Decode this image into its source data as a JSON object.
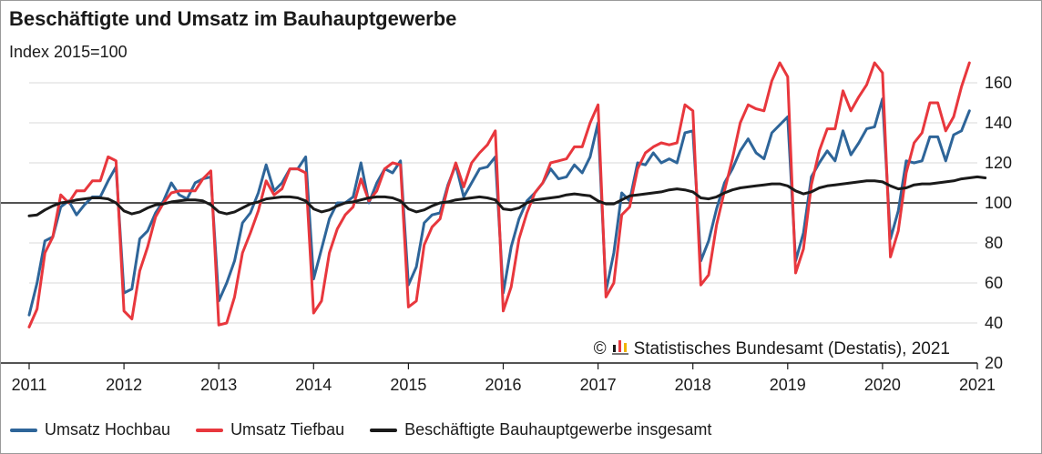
{
  "title": "Beschäftigte und Umsatz im Bauhauptgewerbe",
  "subtitle": "Index 2015=100",
  "credit": "Statistisches Bundesamt (Destatis), 2021",
  "credit_symbol": "©",
  "chart_data": {
    "type": "line",
    "xlim": [
      2011,
      2021
    ],
    "ylim": [
      20,
      170
    ],
    "x_ticks": [
      "2011",
      "2012",
      "2013",
      "2014",
      "2015",
      "2016",
      "2017",
      "2018",
      "2019",
      "2020",
      "2021"
    ],
    "y_ticks": [
      "20",
      "40",
      "60",
      "80",
      "100",
      "120",
      "140",
      "160"
    ],
    "reference_line": 100,
    "grid": "horizontal",
    "legend_position": "bottom",
    "series": [
      {
        "name": "Umsatz Hochbau",
        "color": "#2e6599",
        "values": [
          44,
          60,
          81,
          83,
          98,
          101,
          94,
          99,
          103,
          103,
          111,
          118,
          55,
          57,
          82,
          86,
          95,
          101,
          110,
          104,
          102,
          110,
          112,
          113,
          51,
          60,
          71,
          90,
          95,
          105,
          119,
          106,
          110,
          117,
          117,
          123,
          62,
          77,
          92,
          100,
          100,
          103,
          120,
          100,
          110,
          117,
          115,
          121,
          59,
          68,
          90,
          94,
          95,
          109,
          119,
          103,
          110,
          117,
          118,
          123,
          55,
          78,
          92,
          101,
          105,
          110,
          117,
          112,
          113,
          119,
          115,
          123,
          140,
          56,
          75,
          105,
          101,
          120,
          119,
          125,
          120,
          122,
          120,
          135,
          136,
          71,
          81,
          97,
          110,
          117,
          126,
          132,
          125,
          122,
          135,
          139,
          143,
          71,
          85,
          113,
          120,
          126,
          121,
          136,
          124,
          130,
          137,
          138,
          152,
          82,
          96,
          121,
          120,
          121,
          133,
          133,
          121,
          134,
          136,
          146
        ],
        "start": 2011.0,
        "step": 0.0833333
      },
      {
        "name": "Umsatz Tiefbau",
        "color": "#e8373d",
        "values": [
          38,
          47,
          75,
          83,
          104,
          100,
          106,
          106,
          111,
          111,
          123,
          121,
          46,
          42,
          66,
          78,
          93,
          100,
          105,
          106,
          106,
          106,
          112,
          116,
          39,
          40,
          53,
          75,
          85,
          96,
          111,
          104,
          107,
          117,
          117,
          115,
          45,
          51,
          75,
          87,
          94,
          98,
          112,
          101,
          106,
          117,
          120,
          119,
          48,
          51,
          79,
          88,
          92,
          108,
          120,
          108,
          120,
          125,
          129,
          136,
          46,
          58,
          82,
          95,
          105,
          110,
          120,
          121,
          122,
          128,
          128,
          140,
          149,
          53,
          60,
          94,
          98,
          117,
          125,
          128,
          130,
          129,
          130,
          149,
          146,
          59,
          64,
          89,
          106,
          122,
          140,
          149,
          147,
          146,
          161,
          170,
          163,
          65,
          77,
          109,
          126,
          137,
          137,
          156,
          146,
          153,
          159,
          170,
          165,
          73,
          86,
          115,
          130,
          135,
          150,
          150,
          136,
          143,
          158,
          170
        ],
        "start": 2011.0,
        "step": 0.0833333
      },
      {
        "name": "Beschäftigte Bauhauptgewerbe insgesamt",
        "color": "#1a1a1a",
        "values": [
          93.5,
          94,
          96.5,
          98.5,
          100,
          100.5,
          101.5,
          102,
          102.5,
          102.5,
          102,
          100,
          96,
          94.5,
          95.5,
          97.5,
          99,
          99.5,
          100.5,
          101,
          101.5,
          101.5,
          101,
          99,
          95.5,
          94.5,
          95.5,
          97.5,
          99.5,
          100.5,
          102,
          102.5,
          103,
          103,
          102.5,
          101,
          97,
          95.5,
          96.5,
          98.5,
          100,
          100.5,
          101.5,
          102.5,
          103,
          103,
          102.5,
          101,
          97,
          95.5,
          96.5,
          98.5,
          100,
          100.5,
          101.5,
          102,
          102.5,
          103,
          102.5,
          101.5,
          97,
          96.5,
          97.5,
          100,
          101.5,
          102,
          102.5,
          103,
          104,
          104.5,
          104,
          103.5,
          101,
          99.5,
          99.5,
          101.5,
          103.5,
          104,
          104.5,
          105,
          105.5,
          106.5,
          107,
          106.5,
          105.5,
          102.5,
          102,
          103,
          105,
          106.5,
          107.5,
          108,
          108.5,
          109,
          109.5,
          109.5,
          108.5,
          106,
          104.5,
          105.5,
          107.5,
          108.5,
          109,
          109.5,
          110,
          110.5,
          111,
          111,
          110.5,
          108.5,
          107,
          107.5,
          109,
          109.5,
          109.5,
          110,
          110.5,
          111,
          112,
          112.5,
          113,
          112.5
        ]
      }
    ]
  }
}
